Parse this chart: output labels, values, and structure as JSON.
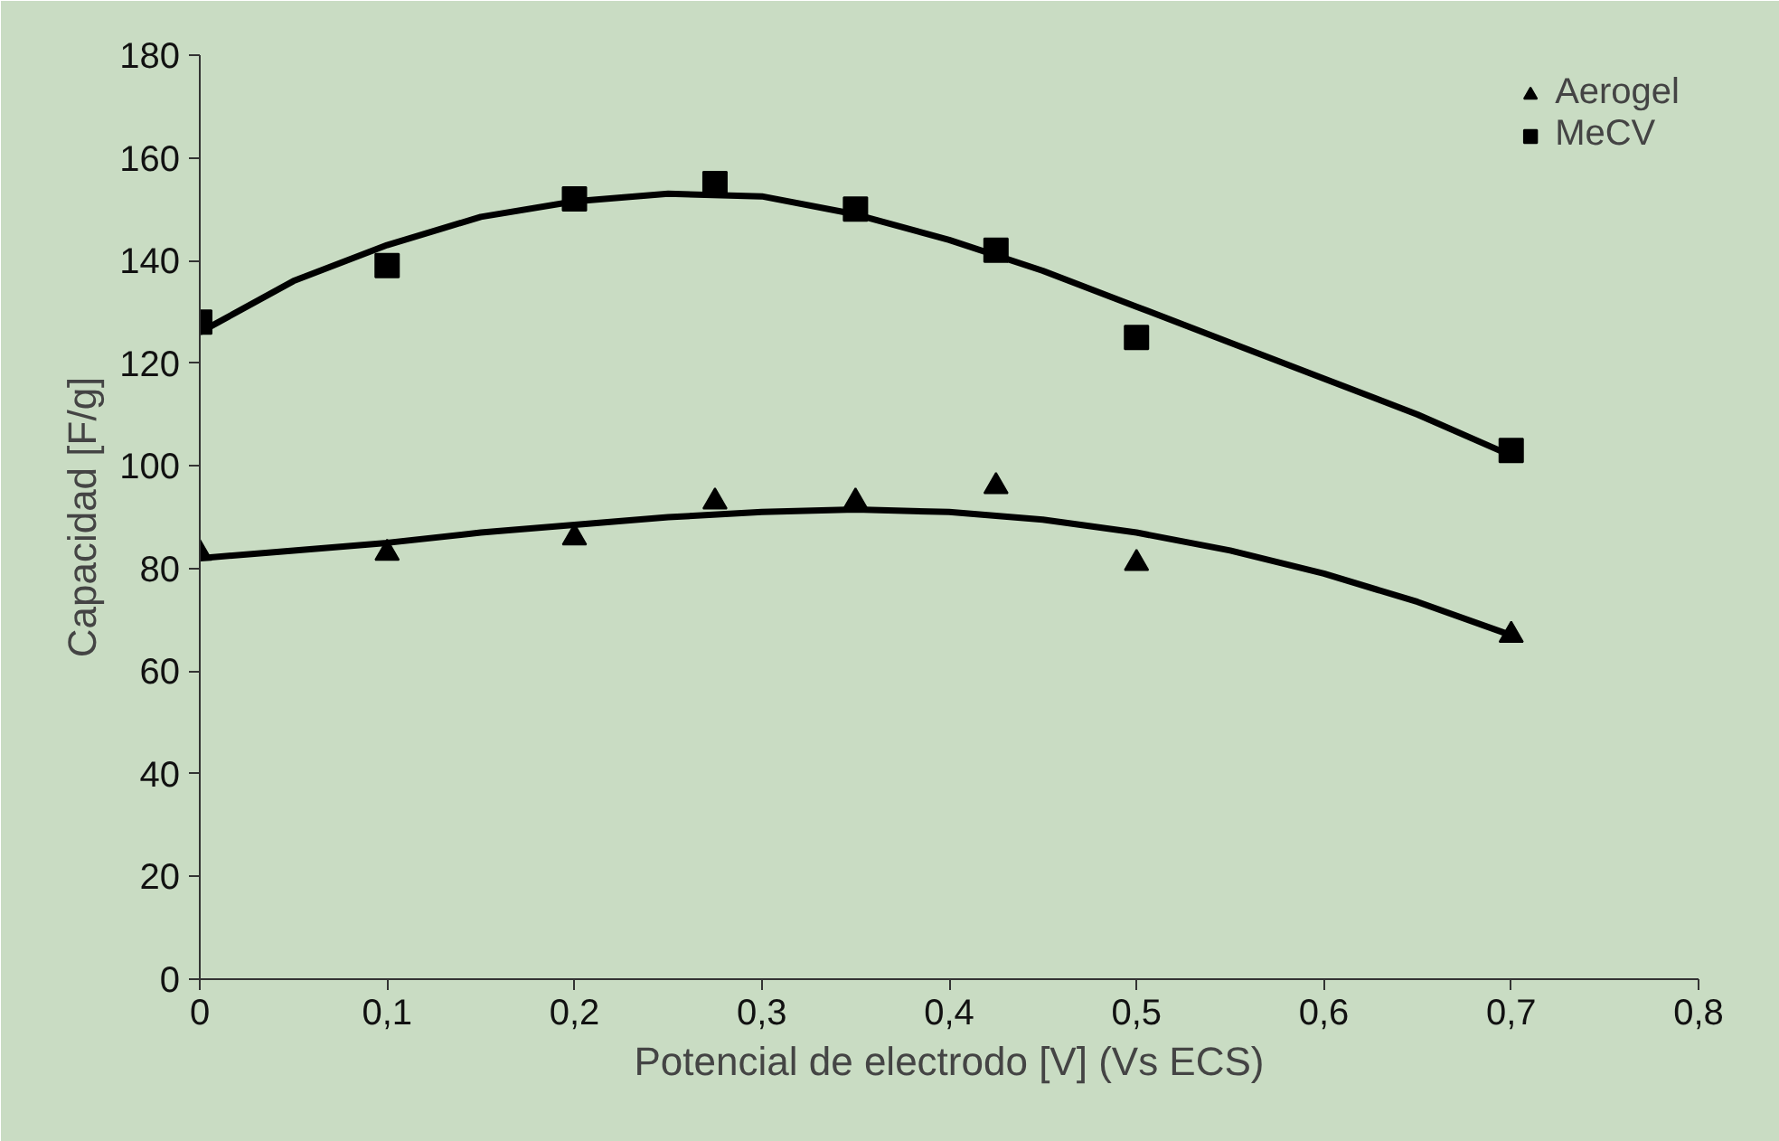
{
  "chart_data": {
    "type": "scatter",
    "xlabel": "Potencial de electrodo [V] (Vs ECS)",
    "ylabel": "Capacidad [F/g]",
    "x": [
      0,
      0.1,
      0.2,
      0.275,
      0.35,
      0.425,
      0.5,
      0.7
    ],
    "series": [
      {
        "name": "Aerogel",
        "color": "#000000",
        "marker": "triangle",
        "values": [
          83,
          83,
          86,
          93,
          93,
          96,
          81,
          67
        ]
      },
      {
        "name": "MeCV",
        "color": "#000000",
        "marker": "square",
        "values": [
          128,
          139,
          152,
          155,
          150,
          142,
          125,
          103
        ]
      },
      {
        "type": "line",
        "color": "#000000",
        "marker": "none",
        "x": [
          0,
          0.05,
          0.1,
          0.15,
          0.2,
          0.25,
          0.3,
          0.35,
          0.4,
          0.45,
          0.5,
          0.55,
          0.6,
          0.65,
          0.7
        ],
        "values": [
          82,
          83.5,
          85,
          87,
          88.5,
          90,
          91,
          91.5,
          91,
          89.5,
          87,
          83.5,
          79,
          73.5,
          67
        ]
      },
      {
        "type": "line",
        "color": "#000000",
        "marker": "none",
        "x": [
          0,
          0.05,
          0.1,
          0.15,
          0.2,
          0.25,
          0.3,
          0.35,
          0.4,
          0.45,
          0.5,
          0.55,
          0.6,
          0.65,
          0.7
        ],
        "values": [
          126,
          136,
          143,
          148.5,
          151.5,
          153,
          152.5,
          149,
          144,
          138,
          131,
          124,
          117,
          110,
          102
        ]
      }
    ],
    "xlim": [
      0,
      0.8
    ],
    "xticks": [
      0,
      {
        "value": 0.1,
        "label": "0,1"
      },
      {
        "value": 0.2,
        "label": "0,2"
      },
      {
        "value": 0.3,
        "label": "0,3"
      },
      {
        "value": 0.4,
        "label": "0,4"
      },
      {
        "value": 0.5,
        "label": "0,5"
      },
      {
        "value": 0.6,
        "label": "0,6"
      },
      {
        "value": 0.7,
        "label": "0,7"
      },
      {
        "value": 0.8,
        "label": "0,8"
      }
    ],
    "ylim": [
      0,
      180
    ],
    "yticks": [
      0,
      20,
      40,
      60,
      80,
      100,
      120,
      140,
      160,
      180
    ],
    "grid": false,
    "legend": "top right"
  }
}
